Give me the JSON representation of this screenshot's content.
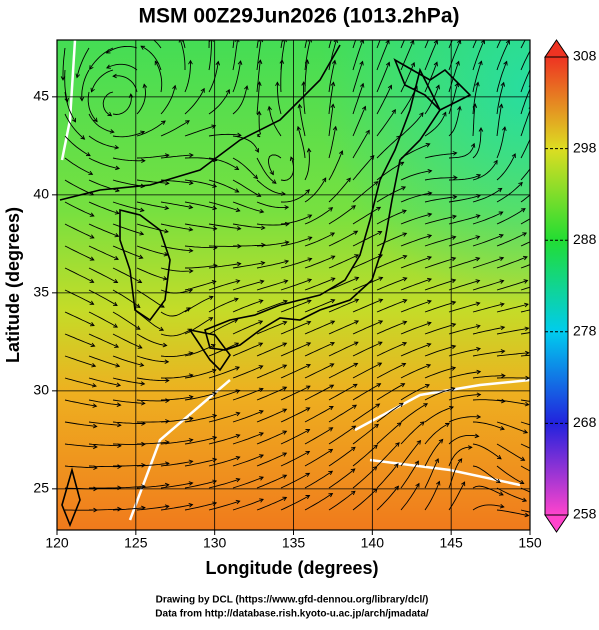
{
  "title": "MSM 00Z29Jun2026 (1013.2hPa)",
  "map": {
    "xlabel": "Longitude (degrees)",
    "ylabel": "Latitude  (degrees)",
    "xlim": [
      120,
      150
    ],
    "ylim": [
      22.9,
      47.9
    ],
    "xticks": [
      120,
      125,
      130,
      135,
      140,
      145,
      150
    ],
    "yticks": [
      25,
      30,
      35,
      40,
      45
    ],
    "grid": true
  },
  "colorbar": {
    "lim": [
      258,
      308
    ],
    "ticks": [
      258,
      268,
      278,
      288,
      298,
      308
    ],
    "colors": [
      "#ff44cc",
      "#2222dd",
      "#00ccee",
      "#22dd33",
      "#dddd22",
      "#ee3322"
    ]
  },
  "footer": [
    "Drawing by DCL (https://www.gfd-dennou.org/library/dcl/)",
    "Data from http://database.rish.kyoto-u.ac.jp/arch/jmadata/"
  ]
}
